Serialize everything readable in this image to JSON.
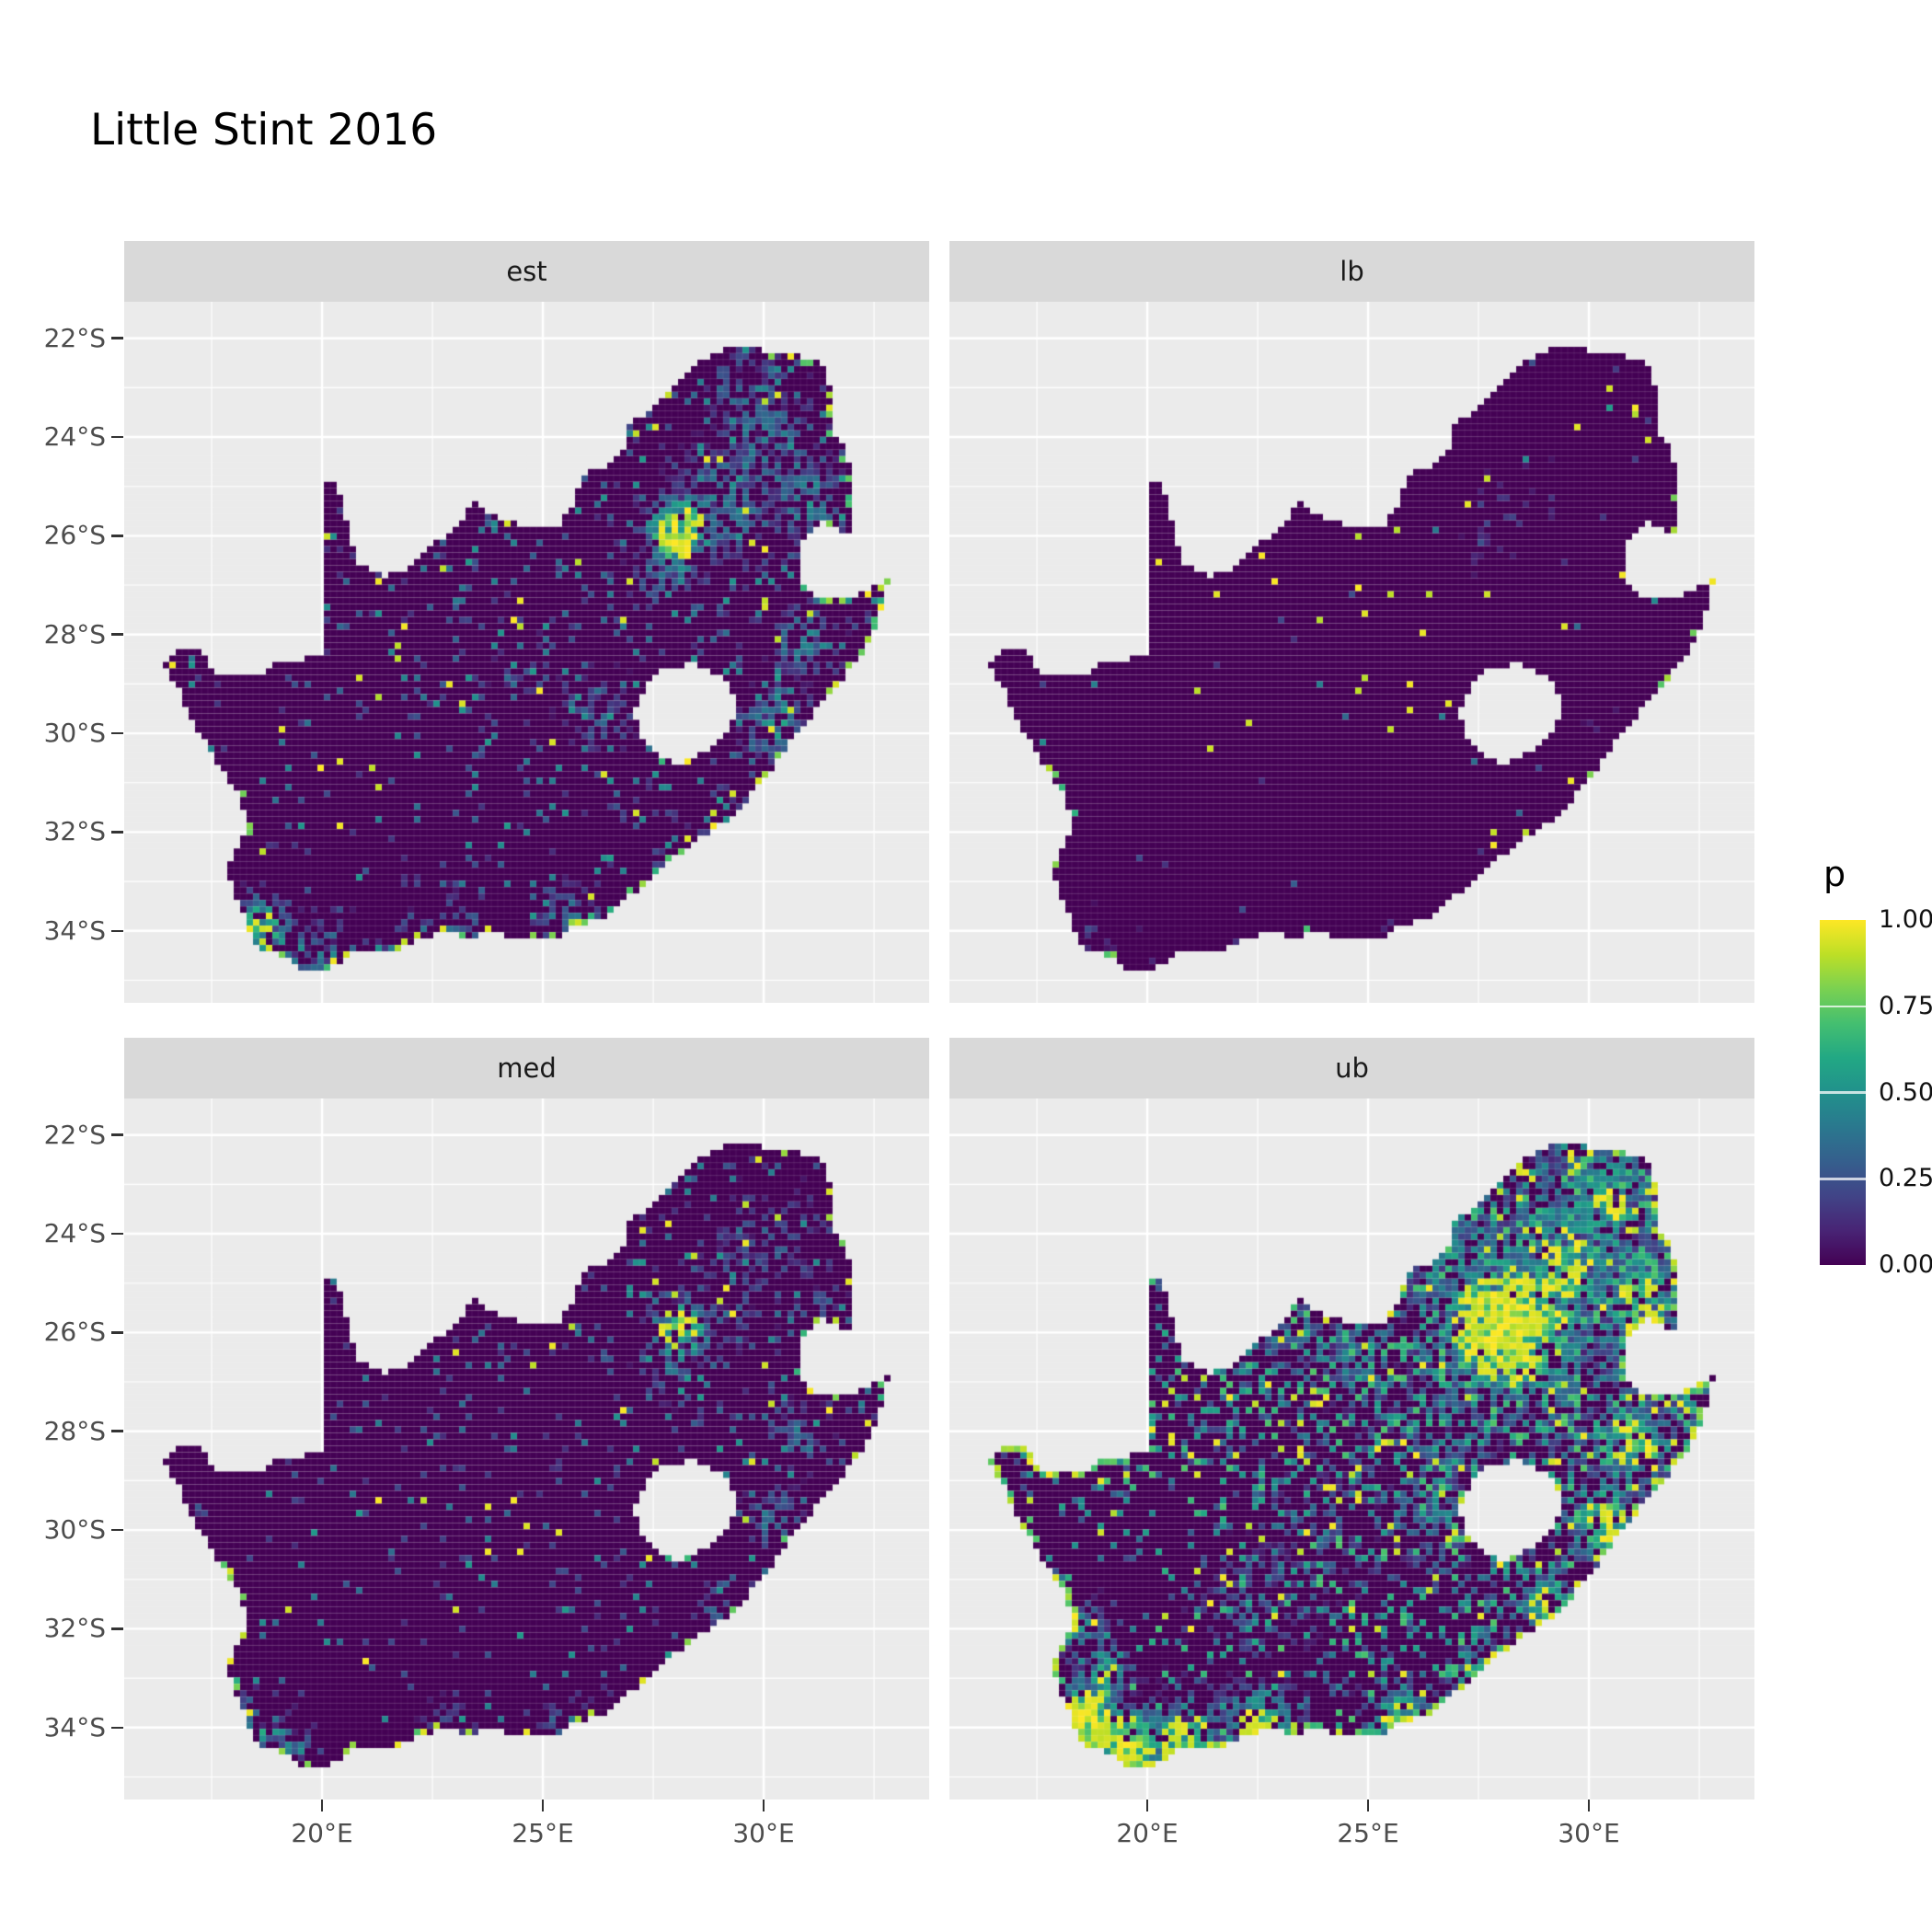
{
  "title": "Little Stint 2016",
  "legend": {
    "title": "p",
    "labels": [
      "1.00",
      "0.75",
      "0.50",
      "0.25",
      "0.00"
    ],
    "values": [
      1,
      0.75,
      0.5,
      0.25,
      0
    ],
    "colors": [
      "#440154",
      "#482475",
      "#414487",
      "#355f8d",
      "#2a788e",
      "#21918c",
      "#22a884",
      "#44bf70",
      "#7ad151",
      "#bddf26",
      "#fde725"
    ]
  },
  "axes": {
    "x_ticks": [
      {
        "value": 20,
        "label": "20°E"
      },
      {
        "value": 25,
        "label": "25°E"
      },
      {
        "value": 30,
        "label": "30°E"
      }
    ],
    "y_ticks": [
      {
        "value": -22,
        "label": "22°S"
      },
      {
        "value": -24,
        "label": "24°S"
      },
      {
        "value": -26,
        "label": "26°S"
      },
      {
        "value": -28,
        "label": "28°S"
      },
      {
        "value": -30,
        "label": "30°S"
      },
      {
        "value": -32,
        "label": "32°S"
      },
      {
        "value": -34,
        "label": "34°S"
      }
    ]
  },
  "panel": {
    "bg": "#ebebeb",
    "strip_bg": "#d9d9d9",
    "grid_major": "#ffffff",
    "na_color": "#440154"
  },
  "chart_data": {
    "type": "heatmap",
    "title": "Little Stint 2016",
    "variable": "p",
    "colormap": "viridis",
    "value_range": [
      0,
      1
    ],
    "legend_breaks": [
      0,
      0.25,
      0.5,
      0.75,
      1
    ],
    "region": "South Africa",
    "lon_range": [
      15.52,
      33.75
    ],
    "lat_range": [
      -35.46,
      -21.26
    ],
    "facets": [
      {
        "label": "est",
        "render": {
          "seed": 11,
          "density": 0.13,
          "yellow_frac": 0.1,
          "base_hi": 0,
          "ne_bias": 1.1,
          "edge_prob": 0.3,
          "hotspots": [
            [
              28.1,
              -25.95,
              0.55,
              0.95
            ],
            [
              27.8,
              -26.75,
              0.5,
              0.5
            ],
            [
              29.2,
              -25.3,
              0.8,
              0.45
            ],
            [
              30.1,
              -24.1,
              0.9,
              0.4
            ],
            [
              29.6,
              -23.1,
              0.7,
              0.35
            ],
            [
              31.0,
              -25.3,
              0.6,
              0.45
            ],
            [
              30.9,
              -28.1,
              0.5,
              0.5
            ],
            [
              30.3,
              -29.8,
              0.5,
              0.55
            ],
            [
              28.9,
              -31.7,
              0.45,
              0.4
            ],
            [
              18.6,
              -33.95,
              0.5,
              0.7
            ],
            [
              19.2,
              -34.55,
              0.55,
              0.55
            ],
            [
              20.3,
              -34.6,
              0.6,
              0.45
            ],
            [
              23.0,
              -34.05,
              0.55,
              0.4
            ],
            [
              25.6,
              -33.9,
              0.5,
              0.5
            ],
            [
              27.9,
              -33.0,
              0.45,
              0.35
            ],
            [
              26.3,
              -29.6,
              0.6,
              0.3
            ],
            [
              24.6,
              -28.7,
              0.5,
              0.25
            ]
          ]
        }
      },
      {
        "label": "lb",
        "render": {
          "seed": 22,
          "density": 0.013,
          "yellow_frac": 0.5,
          "base_hi": 0,
          "ne_bias": 1.2,
          "edge_prob": 0.1,
          "hotspots": [
            [
              28.0,
              -25.6,
              0.6,
              0.2
            ],
            [
              28.9,
              -25.1,
              0.5,
              0.15
            ],
            [
              27.6,
              -26.3,
              0.4,
              0.14
            ],
            [
              18.7,
              -34.0,
              0.35,
              0.22
            ],
            [
              19.8,
              -34.6,
              0.45,
              0.18
            ],
            [
              25.6,
              -33.95,
              0.35,
              0.16
            ],
            [
              30.3,
              -29.8,
              0.3,
              0.15
            ]
          ]
        }
      },
      {
        "label": "med",
        "render": {
          "seed": 33,
          "density": 0.085,
          "yellow_frac": 0.12,
          "base_hi": 0,
          "ne_bias": 1.1,
          "edge_prob": 0.22,
          "hotspots": [
            [
              28.1,
              -25.95,
              0.5,
              0.8
            ],
            [
              27.8,
              -26.75,
              0.45,
              0.4
            ],
            [
              29.2,
              -25.3,
              0.7,
              0.35
            ],
            [
              30.1,
              -24.1,
              0.8,
              0.3
            ],
            [
              31.0,
              -25.4,
              0.55,
              0.35
            ],
            [
              30.9,
              -28.1,
              0.45,
              0.4
            ],
            [
              30.3,
              -29.8,
              0.45,
              0.45
            ],
            [
              18.6,
              -33.95,
              0.45,
              0.55
            ],
            [
              19.3,
              -34.55,
              0.5,
              0.45
            ],
            [
              23.0,
              -34.05,
              0.5,
              0.3
            ],
            [
              25.6,
              -33.9,
              0.45,
              0.4
            ],
            [
              28.9,
              -31.7,
              0.4,
              0.3
            ]
          ]
        }
      },
      {
        "label": "ub",
        "render": {
          "seed": 44,
          "density": 0.3,
          "yellow_frac": 0.1,
          "base_hi": 1,
          "ne_bias": 1.3,
          "edge_prob": 0.6,
          "hotspots": [
            [
              28.2,
              -25.9,
              1.15,
              1.0
            ],
            [
              29.4,
              -24.6,
              1.0,
              0.7
            ],
            [
              30.5,
              -23.4,
              0.9,
              0.6
            ],
            [
              31.1,
              -25.4,
              0.8,
              0.7
            ],
            [
              30.2,
              -22.8,
              0.8,
              0.55
            ],
            [
              27.0,
              -24.6,
              0.8,
              0.5
            ],
            [
              30.9,
              -28.2,
              0.7,
              0.7
            ],
            [
              30.3,
              -29.8,
              0.6,
              0.75
            ],
            [
              29.0,
              -31.4,
              0.55,
              0.6
            ],
            [
              27.5,
              -32.9,
              0.5,
              0.55
            ],
            [
              25.7,
              -33.9,
              0.6,
              0.7
            ],
            [
              18.6,
              -33.9,
              0.6,
              0.95
            ],
            [
              19.5,
              -34.5,
              0.7,
              0.9
            ],
            [
              20.9,
              -34.35,
              0.7,
              0.8
            ],
            [
              22.5,
              -34.05,
              0.65,
              0.7
            ],
            [
              18.9,
              -32.9,
              0.5,
              0.6
            ],
            [
              18.4,
              -32.0,
              0.45,
              0.5
            ],
            [
              24.0,
              -30.1,
              0.9,
              0.3
            ],
            [
              22.4,
              -31.6,
              0.9,
              0.3
            ],
            [
              26.5,
              -29.6,
              0.7,
              0.45
            ],
            [
              26.8,
              -27.9,
              0.8,
              0.45
            ],
            [
              25.0,
              -26.6,
              0.7,
              0.4
            ],
            [
              23.4,
              -25.9,
              0.6,
              0.35
            ]
          ]
        }
      }
    ],
    "outline": {
      "mainland": [
        [
          16.45,
          -28.63
        ],
        [
          16.8,
          -28.3
        ],
        [
          17.25,
          -28.23
        ],
        [
          17.45,
          -28.7
        ],
        [
          18.05,
          -28.87
        ],
        [
          18.55,
          -28.88
        ],
        [
          19.0,
          -28.5
        ],
        [
          19.55,
          -28.5
        ],
        [
          19.99,
          -28.42
        ],
        [
          19.99,
          -24.77
        ],
        [
          20.38,
          -25.03
        ],
        [
          20.52,
          -25.5
        ],
        [
          20.65,
          -26.05
        ],
        [
          20.85,
          -26.58
        ],
        [
          21.4,
          -26.85
        ],
        [
          22.0,
          -26.64
        ],
        [
          22.6,
          -26.12
        ],
        [
          22.9,
          -25.98
        ],
        [
          23.45,
          -25.32
        ],
        [
          24.0,
          -25.65
        ],
        [
          24.7,
          -25.83
        ],
        [
          25.4,
          -25.76
        ],
        [
          25.62,
          -25.47
        ],
        [
          25.9,
          -24.75
        ],
        [
          26.4,
          -24.64
        ],
        [
          26.85,
          -24.27
        ],
        [
          26.97,
          -23.76
        ],
        [
          27.45,
          -23.42
        ],
        [
          28.05,
          -22.95
        ],
        [
          28.35,
          -22.58
        ],
        [
          29.05,
          -22.22
        ],
        [
          29.65,
          -22.13
        ],
        [
          30.25,
          -22.3
        ],
        [
          31.3,
          -22.41
        ],
        [
          31.55,
          -23.2
        ],
        [
          31.56,
          -23.9
        ],
        [
          31.9,
          -24.3
        ],
        [
          31.96,
          -24.9
        ],
        [
          32.02,
          -25.45
        ],
        [
          31.97,
          -25.95
        ],
        [
          31.3,
          -25.73
        ],
        [
          30.85,
          -26.07
        ],
        [
          30.78,
          -26.6
        ],
        [
          30.96,
          -27.1
        ],
        [
          31.5,
          -27.3
        ],
        [
          31.97,
          -27.31
        ],
        [
          32.85,
          -26.86
        ],
        [
          32.55,
          -27.9
        ],
        [
          32.05,
          -28.6
        ],
        [
          31.25,
          -29.45
        ],
        [
          30.6,
          -30.15
        ],
        [
          30.0,
          -30.95
        ],
        [
          29.2,
          -31.75
        ],
        [
          28.2,
          -32.35
        ],
        [
          27.3,
          -33.05
        ],
        [
          26.4,
          -33.7
        ],
        [
          25.65,
          -33.95
        ],
        [
          25.6,
          -34.07
        ],
        [
          24.85,
          -34.2
        ],
        [
          24.0,
          -34.06
        ],
        [
          23.35,
          -34.1
        ],
        [
          22.55,
          -34.06
        ],
        [
          21.75,
          -34.37
        ],
        [
          20.7,
          -34.46
        ],
        [
          20.0,
          -34.82
        ],
        [
          19.55,
          -34.76
        ],
        [
          19.3,
          -34.62
        ],
        [
          18.85,
          -34.4
        ],
        [
          18.45,
          -34.33
        ],
        [
          18.32,
          -33.92
        ],
        [
          18.0,
          -33.2
        ],
        [
          17.85,
          -32.75
        ],
        [
          18.25,
          -32.0
        ],
        [
          18.2,
          -31.4
        ],
        [
          17.55,
          -30.5
        ],
        [
          17.05,
          -29.7
        ],
        [
          16.75,
          -29.1
        ]
      ],
      "lesotho_hole": [
        [
          27.05,
          -29.6
        ],
        [
          27.35,
          -29.0
        ],
        [
          27.75,
          -28.68
        ],
        [
          28.4,
          -28.6
        ],
        [
          29.1,
          -28.92
        ],
        [
          29.45,
          -29.35
        ],
        [
          29.25,
          -29.85
        ],
        [
          28.7,
          -30.35
        ],
        [
          28.1,
          -30.65
        ],
        [
          27.55,
          -30.4
        ],
        [
          27.2,
          -30.0
        ]
      ]
    }
  }
}
